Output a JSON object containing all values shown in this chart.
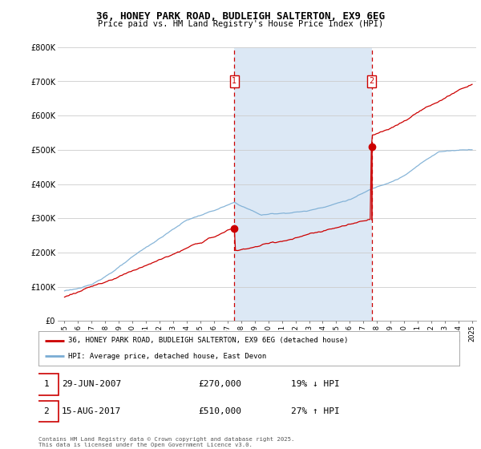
{
  "title": "36, HONEY PARK ROAD, BUDLEIGH SALTERTON, EX9 6EG",
  "subtitle": "Price paid vs. HM Land Registry's House Price Index (HPI)",
  "legend_label1": "36, HONEY PARK ROAD, BUDLEIGH SALTERTON, EX9 6EG (detached house)",
  "legend_label2": "HPI: Average price, detached house, East Devon",
  "sale1_date": "29-JUN-2007",
  "sale1_price": "£270,000",
  "sale1_hpi": "19% ↓ HPI",
  "sale2_date": "15-AUG-2017",
  "sale2_price": "£510,000",
  "sale2_hpi": "27% ↑ HPI",
  "footer": "Contains HM Land Registry data © Crown copyright and database right 2025.\nThis data is licensed under the Open Government Licence v3.0.",
  "ylim": [
    0,
    800000
  ],
  "yticks": [
    0,
    100000,
    200000,
    300000,
    400000,
    500000,
    600000,
    700000,
    800000
  ],
  "bg_color": "#ffffff",
  "plot_bg_color": "#ffffff",
  "shade_color": "#dce8f5",
  "red_line_color": "#cc0000",
  "blue_line_color": "#7aadd4",
  "vline_color": "#cc0000",
  "marker_box_color": "#cc0000",
  "sale1_x": 2007.49,
  "sale2_x": 2017.62,
  "sale1_y": 270000,
  "sale2_y": 510000,
  "xmin": 1995,
  "xmax": 2025
}
